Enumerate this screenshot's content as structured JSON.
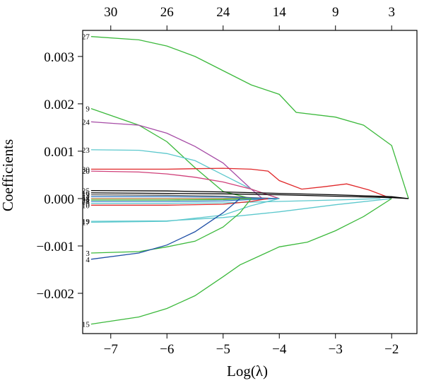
{
  "chart_data": {
    "type": "line",
    "xlabel": "Log(λ)",
    "ylabel": "Coefficients",
    "xlim": [
      -7.5,
      -1.55
    ],
    "ylim": [
      -0.00285,
      0.00355
    ],
    "x_ticks": [
      -7,
      -6,
      -5,
      -4,
      -3,
      -2
    ],
    "x_tick_labels": [
      "−7",
      "−6",
      "−5",
      "−4",
      "−3",
      "−2"
    ],
    "y_ticks": [
      0.003,
      0.002,
      0.001,
      0.0,
      -0.001,
      -0.002
    ],
    "y_tick_labels": [
      "0.003",
      "0.002",
      "0.001",
      "0.000",
      "−0.001",
      "−0.002"
    ],
    "top_axis": {
      "positions": [
        -7.0,
        -6.0,
        -5.0,
        -4.0,
        -3.0,
        -2.0
      ],
      "labels": [
        "30",
        "26",
        "24",
        "14",
        "9",
        "3"
      ]
    },
    "series": [
      {
        "name": "27",
        "color": "#3cb93c",
        "x": [
          -7.35,
          -6.5,
          -6.0,
          -5.5,
          -5.0,
          -4.5,
          -4.0,
          -3.7,
          -3.0,
          -2.5,
          -2.0,
          -1.7
        ],
        "values": [
          0.00342,
          0.00335,
          0.00322,
          0.003,
          0.0027,
          0.0024,
          0.0022,
          0.00182,
          0.00172,
          0.00155,
          0.00112,
          0.0
        ]
      },
      {
        "name": "9",
        "color": "#3cb93c",
        "x": [
          -7.35,
          -6.5,
          -6.0,
          -5.5,
          -5.0,
          -4.5,
          -4.2,
          -4.0
        ],
        "values": [
          0.0019,
          0.00155,
          0.0012,
          0.00065,
          0.00015,
          0.0,
          0.0,
          0.0
        ]
      },
      {
        "name": "24",
        "color": "#a64ca6",
        "x": [
          -7.35,
          -6.5,
          -6.0,
          -5.5,
          -5.0,
          -4.5,
          -4.3
        ],
        "values": [
          0.00162,
          0.00155,
          0.00138,
          0.0011,
          0.00075,
          0.0002,
          0.0
        ]
      },
      {
        "name": "23",
        "color": "#5cc8cd",
        "x": [
          -7.35,
          -6.5,
          -6.0,
          -5.5,
          -5.0,
          -4.5,
          -4.0
        ],
        "values": [
          0.00103,
          0.00102,
          0.00095,
          0.0008,
          0.0005,
          0.0002,
          0.0
        ]
      },
      {
        "name": "30",
        "color": "#e0282a",
        "x": [
          -7.35,
          -6.5,
          -6.0,
          -5.5,
          -5.0,
          -4.5,
          -4.2,
          -4.0,
          -3.6,
          -3.2,
          -2.8,
          -2.4,
          -2.0
        ],
        "values": [
          0.00062,
          0.00062,
          0.00062,
          0.00063,
          0.00064,
          0.00062,
          0.00058,
          0.00038,
          0.0002,
          0.00025,
          0.00031,
          0.00018,
          0.0
        ]
      },
      {
        "name": "20",
        "color": "#d0407a",
        "x": [
          -7.35,
          -6.5,
          -6.0,
          -5.5,
          -5.0,
          -4.5,
          -4.0
        ],
        "values": [
          0.00058,
          0.00056,
          0.00052,
          0.00045,
          0.00035,
          0.0002,
          0.0
        ]
      },
      {
        "name": "25",
        "color": "#000000",
        "x": [
          -7.35,
          -6.0,
          -5.0,
          -4.0,
          -3.0,
          -2.0,
          -1.7
        ],
        "values": [
          0.00017,
          0.00016,
          0.00014,
          0.00011,
          8e-05,
          4e-05,
          0.0
        ]
      },
      {
        "name": "16",
        "color": "#000000",
        "x": [
          -7.35,
          -6.0,
          -5.0,
          -4.0,
          -3.0,
          -2.0,
          -1.7
        ],
        "values": [
          0.00012,
          0.00011,
          0.0001,
          8e-05,
          5e-05,
          2e-05,
          0.0
        ]
      },
      {
        "name": "13",
        "color": "#555555",
        "x": [
          -7.35,
          -6.0,
          -5.0,
          -4.5,
          -4.0
        ],
        "values": [
          8e-05,
          7e-05,
          5e-05,
          2e-05,
          0.0
        ]
      },
      {
        "name": "11",
        "color": "#3a7ec8",
        "x": [
          -7.35,
          -6.0,
          -5.0,
          -4.5,
          -4.0
        ],
        "values": [
          4e-05,
          4e-05,
          3e-05,
          1e-05,
          0.0
        ]
      },
      {
        "name": "18",
        "color": "#b07830",
        "x": [
          -7.35,
          -6.0,
          -5.0,
          -4.5
        ],
        "values": [
          0.0,
          0.0,
          0.0,
          0.0
        ]
      },
      {
        "name": "21",
        "color": "#3cb93c",
        "x": [
          -7.35,
          -6.0,
          -5.0,
          -4.5
        ],
        "values": [
          -3e-05,
          -3e-05,
          -2e-05,
          0.0
        ]
      },
      {
        "name": "28",
        "color": "#3a7ec8",
        "x": [
          -7.35,
          -6.0,
          -5.0,
          -4.5,
          -4.0
        ],
        "values": [
          -6e-05,
          -6e-05,
          -5e-05,
          -2e-05,
          0.0
        ]
      },
      {
        "name": "5",
        "color": "#5cc8cd",
        "x": [
          -7.35,
          -6.0,
          -5.0,
          -4.0,
          -3.0,
          -2.2
        ],
        "values": [
          -0.0001,
          -0.0001,
          -9e-05,
          -6e-05,
          -3e-05,
          0.0
        ]
      },
      {
        "name": "10",
        "color": "#e0282a",
        "x": [
          -7.35,
          -6.0,
          -5.0,
          -4.5,
          -4.2
        ],
        "values": [
          -0.00014,
          -0.00014,
          -0.00012,
          -6e-05,
          0.0
        ]
      },
      {
        "name": "19",
        "color": "#5cc8cd",
        "x": [
          -7.35,
          -6.0,
          -5.0,
          -4.0,
          -3.0,
          -2.0
        ],
        "values": [
          -0.00048,
          -0.00047,
          -0.0004,
          -0.00028,
          -0.00013,
          0.0
        ]
      },
      {
        "name": "17",
        "color": "#5cc8cd",
        "x": [
          -7.35,
          -6.0,
          -5.0,
          -4.5,
          -4.0
        ],
        "values": [
          -0.0005,
          -0.00048,
          -0.00035,
          -0.00015,
          0.0
        ]
      },
      {
        "name": "3",
        "color": "#3cb93c",
        "x": [
          -7.35,
          -6.5,
          -6.0,
          -5.5,
          -5.0,
          -4.7,
          -4.5
        ],
        "values": [
          -0.00115,
          -0.00112,
          -0.00102,
          -0.0009,
          -0.0006,
          -0.0003,
          0.0
        ]
      },
      {
        "name": "4",
        "color": "#1f4fa6",
        "x": [
          -7.35,
          -6.5,
          -6.0,
          -5.5,
          -5.0,
          -4.7
        ],
        "values": [
          -0.00128,
          -0.00115,
          -0.00098,
          -0.0007,
          -0.0003,
          0.0
        ]
      },
      {
        "name": "15",
        "color": "#3cb93c",
        "x": [
          -7.35,
          -6.5,
          -6.0,
          -5.5,
          -5.0,
          -4.7,
          -4.0,
          -3.5,
          -3.0,
          -2.5,
          -2.0
        ],
        "values": [
          -0.00265,
          -0.0025,
          -0.00232,
          -0.00205,
          -0.00165,
          -0.0014,
          -0.00102,
          -0.00092,
          -0.00068,
          -0.00038,
          0.0
        ]
      }
    ]
  }
}
